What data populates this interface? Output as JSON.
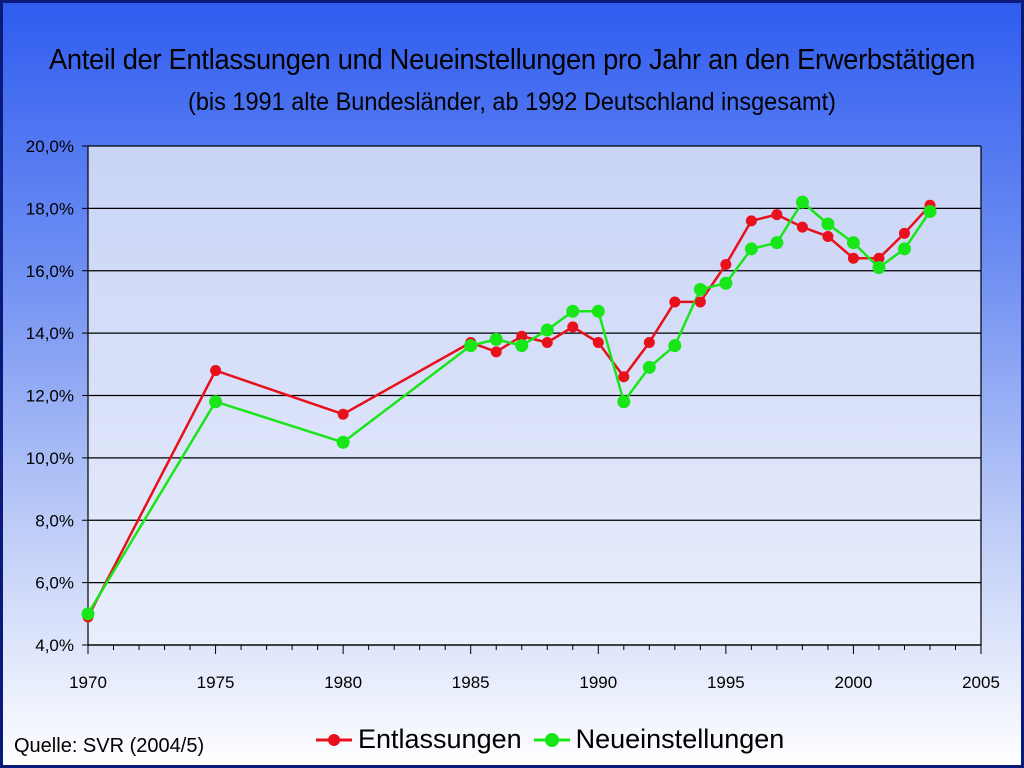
{
  "title": "Anteil der Entlassungen und Neueinstellungen pro Jahr an den Erwerbstätigen",
  "subtitle": "(bis 1991 alte Bundesländer, ab 1992 Deutschland insgesamt)",
  "source": "Quelle: SVR (2004/5)",
  "colors": {
    "entlassungen": "#e8101a",
    "neueinstellungen": "#19e619",
    "grid": "#000000",
    "plot_bg_top": "#ccd6f6",
    "plot_bg_bottom": "#e6ebfb"
  },
  "chart_data": {
    "type": "line",
    "title": "Anteil der Entlassungen und Neueinstellungen pro Jahr an den Erwerbstätigen",
    "subtitle": "(bis 1991 alte Bundesländer, ab 1992 Deutschland insgesamt)",
    "xlabel": "",
    "ylabel": "",
    "xlim": [
      1970,
      2005
    ],
    "ylim": [
      4.0,
      20.0
    ],
    "x_ticks": [
      "1970",
      "1975",
      "1980",
      "1985",
      "1990",
      "1995",
      "2000",
      "2005"
    ],
    "y_ticks": [
      "4,0%",
      "6,0%",
      "8,0%",
      "10,0%",
      "12,0%",
      "14,0%",
      "16,0%",
      "18,0%",
      "20,0%"
    ],
    "grid": true,
    "legend_position": "bottom",
    "series": [
      {
        "name": "Entlassungen",
        "x": [
          1970,
          1975,
          1980,
          1985,
          1986,
          1987,
          1988,
          1989,
          1990,
          1991,
          1992,
          1993,
          1994,
          1995,
          1996,
          1997,
          1998,
          1999,
          2000,
          2001,
          2002,
          2003
        ],
        "values": [
          4.9,
          12.8,
          11.4,
          13.7,
          13.4,
          13.9,
          13.7,
          14.2,
          13.7,
          12.6,
          13.7,
          15.0,
          15.0,
          16.2,
          17.6,
          17.8,
          17.4,
          17.1,
          16.4,
          16.4,
          17.2,
          18.1
        ]
      },
      {
        "name": "Neueinstellungen",
        "x": [
          1970,
          1975,
          1980,
          1985,
          1986,
          1987,
          1988,
          1989,
          1990,
          1991,
          1992,
          1993,
          1994,
          1995,
          1996,
          1997,
          1998,
          1999,
          2000,
          2001,
          2002,
          2003
        ],
        "values": [
          5.0,
          11.8,
          10.5,
          13.6,
          13.8,
          13.6,
          14.1,
          14.7,
          14.7,
          11.8,
          12.9,
          13.6,
          15.4,
          15.6,
          16.7,
          16.9,
          18.2,
          17.5,
          16.9,
          16.1,
          16.7,
          17.9
        ]
      }
    ]
  }
}
